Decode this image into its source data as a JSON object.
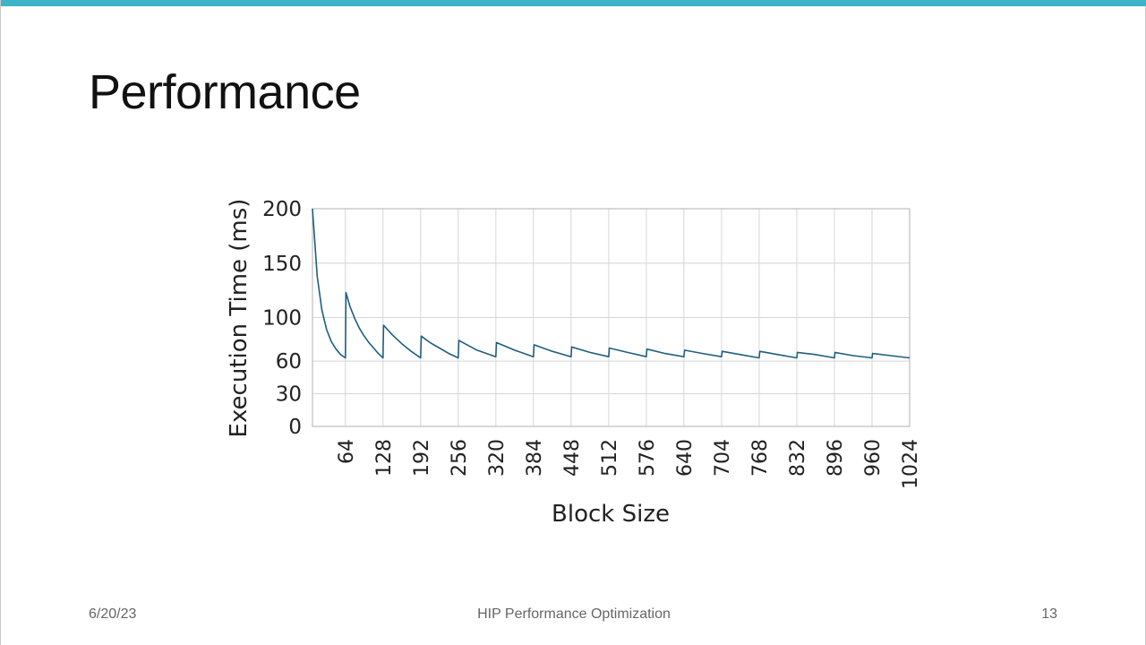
{
  "slide": {
    "title": "Performance",
    "accent_color": "#3fb3c6"
  },
  "footer": {
    "date": "6/20/23",
    "center": "HIP Performance Optimization",
    "page": "13"
  },
  "chart_data": {
    "type": "line",
    "title": "",
    "xlabel": "Block Size",
    "ylabel": "Execution Time (ms)",
    "xlim": [
      8,
      1024
    ],
    "ylim": [
      0,
      200
    ],
    "xticks": [
      64,
      128,
      192,
      256,
      320,
      384,
      448,
      512,
      576,
      640,
      704,
      768,
      832,
      896,
      960,
      1024
    ],
    "yticks": [
      0,
      30,
      60,
      100,
      150,
      200
    ],
    "grid": true,
    "line_color": "#1f5f7f",
    "series": [
      {
        "name": "Execution Time",
        "x": [
          8,
          16,
          24,
          32,
          40,
          48,
          56,
          64,
          65,
          72,
          80,
          88,
          96,
          104,
          112,
          120,
          128,
          129,
          144,
          160,
          176,
          192,
          193,
          208,
          224,
          240,
          256,
          257,
          288,
          320,
          321,
          352,
          384,
          385,
          416,
          448,
          449,
          480,
          512,
          513,
          544,
          576,
          577,
          608,
          640,
          641,
          672,
          704,
          705,
          736,
          768,
          769,
          800,
          832,
          833,
          864,
          896,
          897,
          928,
          960,
          961,
          992,
          1024
        ],
        "values": [
          200,
          138,
          107,
          89,
          78,
          71,
          66,
          63,
          123,
          110,
          99,
          90,
          83,
          77,
          72,
          67,
          63,
          93,
          84,
          76,
          69,
          63,
          83,
          77,
          72,
          67,
          63,
          79,
          70,
          64,
          77,
          70,
          64,
          75,
          69,
          64,
          73,
          68,
          64,
          72,
          68,
          64,
          71,
          67,
          64,
          70,
          67,
          64,
          69,
          66,
          63,
          69,
          66,
          63,
          68,
          66,
          63,
          68,
          65,
          63,
          67,
          65,
          63
        ]
      }
    ]
  }
}
